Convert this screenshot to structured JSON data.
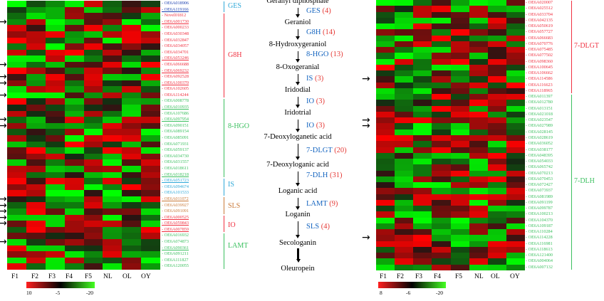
{
  "colors": {
    "red": "#ff2020",
    "green": "#44ff22",
    "black": "#000000",
    "blue": "#1565c0",
    "teal": "#2ea8d8",
    "brown": "#c97a3a",
    "pink": "#f03040",
    "lgreen": "#3cc060"
  },
  "columns": [
    "F1",
    "F2",
    "F3",
    "F4",
    "F5",
    "NL",
    "OL",
    "OY"
  ],
  "left_panel": {
    "genes": [
      {
        "id": "OE6A018906",
        "grp": "GES",
        "ul": false
      },
      {
        "id": "OE6A119166",
        "grp": "GES",
        "ul": true
      },
      {
        "id": "Novel01812",
        "grp": "G8H",
        "ul": false
      },
      {
        "id": "OE6A001730",
        "grp": "G8H",
        "ul": true
      },
      {
        "id": "OE6A000233",
        "grp": "G8H",
        "ul": false
      },
      {
        "id": "OE6A030348",
        "grp": "G8H",
        "ul": false
      },
      {
        "id": "OE6A032847",
        "grp": "G8H",
        "ul": false
      },
      {
        "id": "OE6A034057",
        "grp": "G8H",
        "ul": false
      },
      {
        "id": "OE6A034701",
        "grp": "G8H",
        "ul": false
      },
      {
        "id": "OE6A053246",
        "grp": "G8H",
        "ul": true
      },
      {
        "id": "OE6A066688",
        "grp": "G8H",
        "ul": false
      },
      {
        "id": "OE6A069232",
        "grp": "G8H",
        "ul": true
      },
      {
        "id": "OE6A092528",
        "grp": "G8H",
        "ul": false
      },
      {
        "id": "OE6A100370",
        "grp": "G8H",
        "ul": true
      },
      {
        "id": "OE6A102605",
        "grp": "G8H",
        "ul": false
      },
      {
        "id": "OE6A114244",
        "grp": "G8H",
        "ul": false
      },
      {
        "id": "OE6A008778",
        "grp": "8HGO",
        "ul": false
      },
      {
        "id": "OE6A010935",
        "grp": "8HGO",
        "ul": true
      },
      {
        "id": "OE6A107686",
        "grp": "8HGO",
        "ul": false
      },
      {
        "id": "OE6A097954",
        "grp": "8HGO",
        "ul": true
      },
      {
        "id": "OE6A090151",
        "grp": "8HGO",
        "ul": false
      },
      {
        "id": "OE6A089154",
        "grp": "8HGO",
        "ul": false
      },
      {
        "id": "OE6A085091",
        "grp": "8HGO",
        "ul": false
      },
      {
        "id": "OE6A071931",
        "grp": "8HGO",
        "ul": false
      },
      {
        "id": "OE6A059137",
        "grp": "8HGO",
        "ul": false
      },
      {
        "id": "OE6A034730",
        "grp": "8HGO",
        "ul": false
      },
      {
        "id": "OE6A031557",
        "grp": "8HGO",
        "ul": false
      },
      {
        "id": "OE6A018611",
        "grp": "8HGO",
        "ul": false
      },
      {
        "id": "OE6A018218",
        "grp": "8HGO",
        "ul": true
      },
      {
        "id": "OE6A051723",
        "grp": "IS",
        "ul": true
      },
      {
        "id": "OE6A094674",
        "grp": "IS",
        "ul": false
      },
      {
        "id": "OE6A101533",
        "grp": "IS",
        "ul": false
      },
      {
        "id": "OE6A011072",
        "grp": "SLS",
        "ul": true
      },
      {
        "id": "OE6A039927",
        "grp": "SLS",
        "ul": false
      },
      {
        "id": "OE6A091091",
        "grp": "SLS",
        "ul": false
      },
      {
        "id": "OE6A000525",
        "grp": "IO",
        "ul": true
      },
      {
        "id": "OE6A059843",
        "grp": "IO",
        "ul": true
      },
      {
        "id": "OE6A007859",
        "grp": "IO",
        "ul": true
      },
      {
        "id": "OE6A016932",
        "grp": "LAMT",
        "ul": false
      },
      {
        "id": "OE6A074873",
        "grp": "LAMT",
        "ul": false
      },
      {
        "id": "OE6A090361",
        "grp": "LAMT",
        "ul": true
      },
      {
        "id": "OE6A091211",
        "grp": "LAMT",
        "ul": false
      },
      {
        "id": "OE6A111827",
        "grp": "LAMT",
        "ul": false
      },
      {
        "id": "OE6A120055",
        "grp": "LAMT",
        "ul": false
      }
    ],
    "groups": [
      {
        "name": "GES",
        "color": "teal"
      },
      {
        "name": "G8H",
        "color": "pink"
      },
      {
        "name": "8-HGO",
        "color": "lgreen"
      },
      {
        "name": "IS",
        "color": "teal"
      },
      {
        "name": "SLS",
        "color": "brown"
      },
      {
        "name": "IO",
        "color": "pink"
      },
      {
        "name": "LAMT",
        "color": "lgreen"
      }
    ],
    "legend": {
      "min": "10",
      "mid": "-5",
      "max": "-20"
    }
  },
  "right_panel": {
    "genes": [
      {
        "id": "OE6A020007",
        "grp": "DLGT"
      },
      {
        "id": "OE6A025512",
        "grp": "DLGT"
      },
      {
        "id": "OE6A033704",
        "grp": "DLGT"
      },
      {
        "id": "OE6A042135",
        "grp": "DLGT"
      },
      {
        "id": "OE6A050619",
        "grp": "DLGT"
      },
      {
        "id": "OE6A057727",
        "grp": "DLGT"
      },
      {
        "id": "OE6A066683",
        "grp": "DLGT"
      },
      {
        "id": "OE6A070776",
        "grp": "DLGT"
      },
      {
        "id": "OE6A075485",
        "grp": "DLGT"
      },
      {
        "id": "OE6A077502",
        "grp": "DLGT"
      },
      {
        "id": "OE6A098360",
        "grp": "DLGT"
      },
      {
        "id": "OE6A100645",
        "grp": "DLGT"
      },
      {
        "id": "OE6A106662",
        "grp": "DLGT"
      },
      {
        "id": "OE6A114586",
        "grp": "DLGT"
      },
      {
        "id": "OE6A116623",
        "grp": "DLGT"
      },
      {
        "id": "OE6A118965",
        "grp": "DLGT"
      },
      {
        "id": "OE6A011397",
        "grp": "DLH"
      },
      {
        "id": "OE6A012780",
        "grp": "DLH"
      },
      {
        "id": "OE6A013151",
        "grp": "DLH"
      },
      {
        "id": "OE6A021018",
        "grp": "DLH"
      },
      {
        "id": "OE6A023547",
        "grp": "DLH"
      },
      {
        "id": "OE6A027989",
        "grp": "DLH"
      },
      {
        "id": "OE6A028145",
        "grp": "DLH"
      },
      {
        "id": "OE6A028619",
        "grp": "DLH"
      },
      {
        "id": "OE6A036052",
        "grp": "DLH"
      },
      {
        "id": "OE6A038177",
        "grp": "DLH"
      },
      {
        "id": "OE6A048395",
        "grp": "DLH"
      },
      {
        "id": "OE6A054033",
        "grp": "DLH"
      },
      {
        "id": "OE6A065742",
        "grp": "DLH"
      },
      {
        "id": "OE6A070213",
        "grp": "DLH"
      },
      {
        "id": "OE6A070453",
        "grp": "DLH"
      },
      {
        "id": "OE6A072427",
        "grp": "DLH"
      },
      {
        "id": "OE6A073937",
        "grp": "DLH"
      },
      {
        "id": "OE6A081989",
        "grp": "DLH"
      },
      {
        "id": "OE6A091199",
        "grp": "DLH"
      },
      {
        "id": "OE6A099787",
        "grp": "DLH"
      },
      {
        "id": "OE6A100213",
        "grp": "DLH"
      },
      {
        "id": "OE6A104370",
        "grp": "DLH"
      },
      {
        "id": "OE6A109187",
        "grp": "DLH"
      },
      {
        "id": "OE6A110284",
        "grp": "DLH"
      },
      {
        "id": "OE6A114228",
        "grp": "DLH"
      },
      {
        "id": "OE6A116981",
        "grp": "DLH"
      },
      {
        "id": "OE6A118613",
        "grp": "DLH"
      },
      {
        "id": "OE6A121400",
        "grp": "DLH"
      },
      {
        "id": "OE6A004064",
        "grp": "DLH"
      },
      {
        "id": "OE6A007132",
        "grp": "DLH"
      }
    ],
    "groups": [
      {
        "name": "7-DLGT",
        "color": "pink"
      },
      {
        "name": "7-DLH",
        "color": "lgreen"
      }
    ],
    "legend": {
      "min": "8",
      "mid": "-6",
      "max": "-20"
    }
  },
  "pathway": {
    "compounds": [
      "Geranyl diphosphate",
      "Geraniol",
      "8-Hydroxygeraniol",
      "8-Oxogeranial",
      "Iridodial",
      "Iridotrial",
      "7-Deoxyloganetic acid",
      "7-Deoxyloganic acid",
      "Loganic acid",
      "Loganin",
      "Secologanin",
      "Oleuropein"
    ],
    "enzymes": [
      {
        "name": "GES",
        "count": "(4)"
      },
      {
        "name": "G8H",
        "count": "(14)"
      },
      {
        "name": "8-HGO",
        "count": "(13)"
      },
      {
        "name": "IS",
        "count": "(3)"
      },
      {
        "name": "IO",
        "count": "(3)"
      },
      {
        "name": "IO",
        "count": "(3)"
      },
      {
        "name": "7-DLGT",
        "count": "(20)"
      },
      {
        "name": "7-DLH",
        "count": "(31)"
      },
      {
        "name": "LAMT",
        "count": "(9)"
      },
      {
        "name": "SLS",
        "count": "(4)"
      }
    ]
  }
}
